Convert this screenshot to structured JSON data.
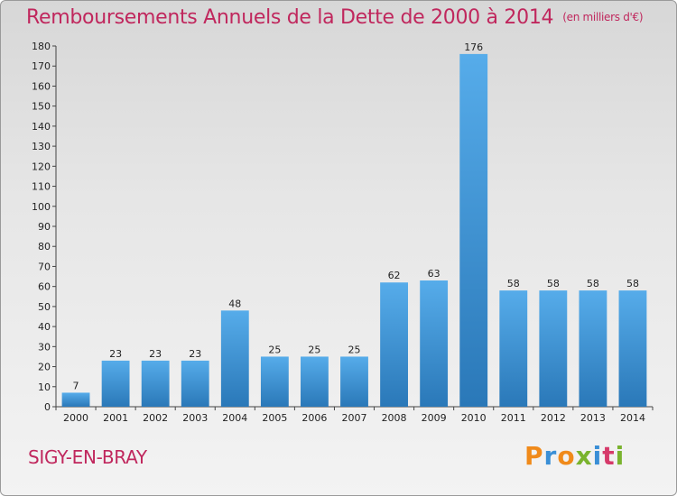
{
  "title": "Remboursements Annuels de la Dette de 2000 à 2014",
  "unit": "(en milliers d'€)",
  "commune": "SIGY-EN-BRAY",
  "logo": {
    "text": "Proxiti",
    "colors": [
      "#f08a1a",
      "#3a8fd6",
      "#f08a1a",
      "#7ab32e",
      "#3a8fd6",
      "#d63a6a",
      "#7ab32e"
    ]
  },
  "colors": {
    "bar": "#3f9ad9",
    "bar_dark": "#2a78b8",
    "title": "#c0275d"
  },
  "chart_data": {
    "type": "bar",
    "title": "Remboursements Annuels de la Dette de 2000 à 2014",
    "xlabel": "",
    "ylabel": "",
    "categories": [
      "2000",
      "2001",
      "2002",
      "2003",
      "2004",
      "2005",
      "2006",
      "2007",
      "2008",
      "2009",
      "2010",
      "2011",
      "2012",
      "2013",
      "2014"
    ],
    "values": [
      7,
      23,
      23,
      23,
      48,
      25,
      25,
      25,
      62,
      63,
      176,
      58,
      58,
      58,
      58
    ],
    "ylim": [
      0,
      180
    ],
    "yticks": [
      0,
      10,
      20,
      30,
      40,
      50,
      60,
      70,
      80,
      90,
      100,
      110,
      120,
      130,
      140,
      150,
      160,
      170,
      180
    ],
    "grid": false,
    "data_labels": true
  }
}
